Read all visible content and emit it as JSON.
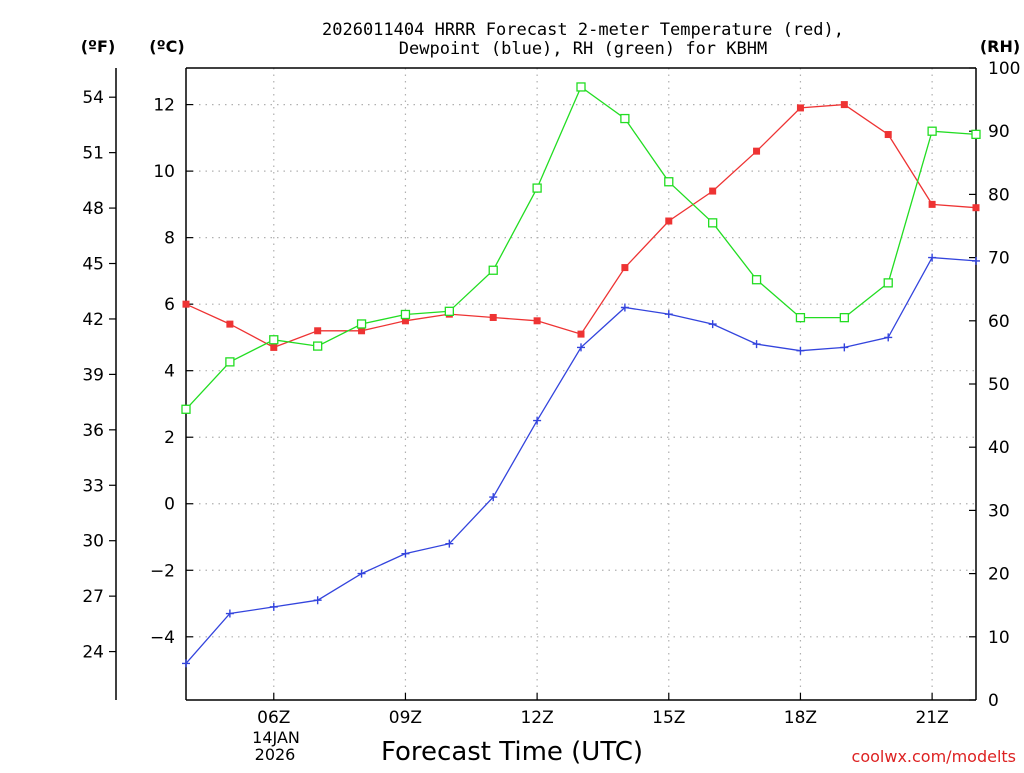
{
  "chart_data": {
    "type": "line",
    "title_line1": "2026011404 HRRR Forecast 2-meter Temperature (red),",
    "title_line2": "Dewpoint (blue), RH (green) for KBHM",
    "xlabel": "Forecast Time (UTC)",
    "left_unit_f": "(ºF)",
    "left_unit_c": "(ºC)",
    "right_unit": "(RH)",
    "date_day": "14JAN",
    "date_year": "2026",
    "watermark": "coolwx.com/modelts",
    "x_hours": [
      4,
      5,
      6,
      7,
      8,
      9,
      10,
      11,
      12,
      13,
      14,
      15,
      16,
      17,
      18,
      19,
      20,
      21,
      22
    ],
    "x_range": [
      4,
      22
    ],
    "x_ticks": [
      {
        "hour": 6,
        "label": "06Z"
      },
      {
        "hour": 9,
        "label": "09Z"
      },
      {
        "hour": 12,
        "label": "12Z"
      },
      {
        "hour": 15,
        "label": "15Z"
      },
      {
        "hour": 18,
        "label": "18Z"
      },
      {
        "hour": 21,
        "label": "21Z"
      }
    ],
    "celsius_range": [
      -5.9,
      13.1
    ],
    "celsius_ticks": [
      -4,
      -2,
      0,
      2,
      4,
      6,
      8,
      10,
      12
    ],
    "fahrenheit_ticks": [
      24,
      27,
      30,
      33,
      36,
      39,
      42,
      45,
      48,
      51,
      54
    ],
    "rh_range": [
      0,
      100
    ],
    "rh_ticks": [
      0,
      10,
      20,
      30,
      40,
      50,
      60,
      70,
      80,
      90,
      100
    ],
    "grid": true,
    "series": [
      {
        "name": "Temperature",
        "axis": "celsius",
        "color": "#ee3333",
        "marker": "filled-square",
        "values": [
          6.0,
          5.4,
          4.7,
          5.2,
          5.2,
          5.5,
          5.7,
          5.6,
          5.5,
          5.1,
          7.1,
          8.5,
          9.4,
          10.6,
          11.9,
          12.0,
          11.1,
          9.0,
          8.9
        ]
      },
      {
        "name": "Dewpoint",
        "axis": "celsius",
        "color": "#3344dd",
        "marker": "plus",
        "values": [
          -4.8,
          -3.3,
          -3.1,
          -2.9,
          -2.1,
          -1.5,
          -1.2,
          0.2,
          2.5,
          4.7,
          5.9,
          5.7,
          5.4,
          4.8,
          4.6,
          4.7,
          5.0,
          7.4,
          7.3
        ]
      },
      {
        "name": "RH",
        "axis": "rh",
        "color": "#22dd22",
        "marker": "open-square",
        "values": [
          46,
          53.5,
          57,
          56,
          59.5,
          61,
          61.5,
          68,
          81,
          97,
          92,
          82,
          75.5,
          66.5,
          60.5,
          60.5,
          66,
          90,
          89.5
        ]
      }
    ]
  }
}
